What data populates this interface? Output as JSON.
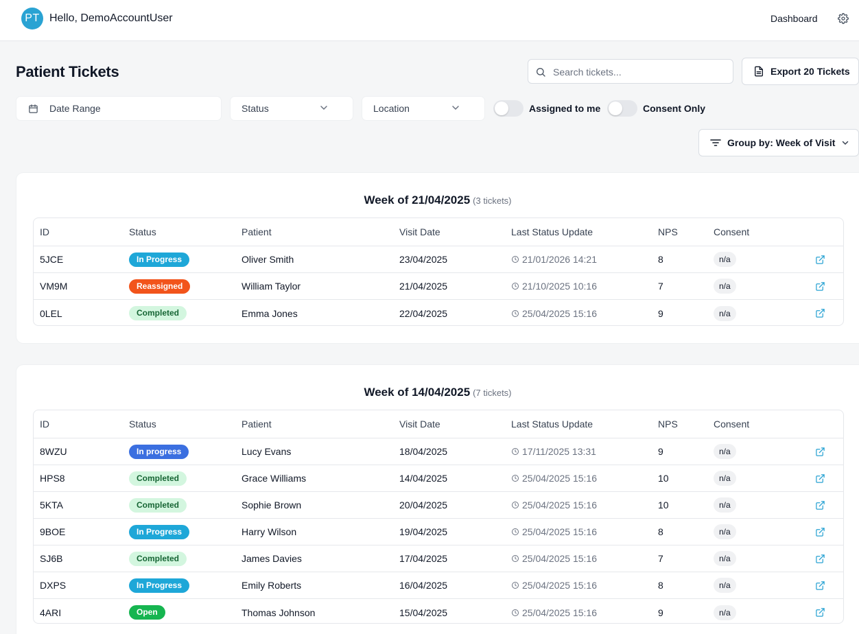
{
  "header": {
    "avatar_initials": "PT",
    "greeting": "Hello, DemoAccountUser",
    "nav_dashboard": "Dashboard"
  },
  "page": {
    "title": "Patient Tickets"
  },
  "search": {
    "placeholder": "Search tickets...",
    "value": ""
  },
  "export_button": "Export 20 Tickets",
  "filters": {
    "date_range": "Date Range",
    "status": "Status",
    "location": "Location",
    "assigned_to_me": "Assigned to me",
    "assigned_to_me_on": false,
    "consent_only": "Consent Only",
    "consent_only_on": false
  },
  "group_by": "Group by: Week of Visit",
  "columns": [
    "ID",
    "Status",
    "Patient",
    "Visit Date",
    "Last Status Update",
    "NPS",
    "Consent"
  ],
  "status_colors": {
    "In Progress": {
      "bg": "#1ea7d8",
      "fg": "#ffffff"
    },
    "In progress": {
      "bg": "#3b6fe0",
      "fg": "#ffffff"
    },
    "Reassigned": {
      "bg": "#f2541b",
      "fg": "#ffffff"
    },
    "Completed": {
      "bg": "#d3f6df",
      "fg": "#166534"
    },
    "Open": {
      "bg": "#16b550",
      "fg": "#ffffff"
    }
  },
  "groups": [
    {
      "week": "Week of 21/04/2025",
      "count": "(3 tickets)",
      "rows": [
        {
          "id": "5JCE",
          "status": "In Progress",
          "patient": "Oliver Smith",
          "visit_date": "23/04/2025",
          "last_update": "21/01/2026 14:21",
          "nps": "8",
          "consent": "n/a"
        },
        {
          "id": "VM9M",
          "status": "Reassigned",
          "patient": "William Taylor",
          "visit_date": "21/04/2025",
          "last_update": "21/10/2025 10:16",
          "nps": "7",
          "consent": "n/a"
        },
        {
          "id": "0LEL",
          "status": "Completed",
          "patient": "Emma Jones",
          "visit_date": "22/04/2025",
          "last_update": "25/04/2025 15:16",
          "nps": "9",
          "consent": "n/a"
        }
      ]
    },
    {
      "week": "Week of 14/04/2025",
      "count": "(7 tickets)",
      "rows": [
        {
          "id": "8WZU",
          "status": "In progress",
          "patient": "Lucy Evans",
          "visit_date": "18/04/2025",
          "last_update": "17/11/2025 13:31",
          "nps": "9",
          "consent": "n/a"
        },
        {
          "id": "HPS8",
          "status": "Completed",
          "patient": "Grace Williams",
          "visit_date": "14/04/2025",
          "last_update": "25/04/2025 15:16",
          "nps": "10",
          "consent": "n/a"
        },
        {
          "id": "5KTA",
          "status": "Completed",
          "patient": "Sophie Brown",
          "visit_date": "20/04/2025",
          "last_update": "25/04/2025 15:16",
          "nps": "10",
          "consent": "n/a"
        },
        {
          "id": "9BOE",
          "status": "In Progress",
          "patient": "Harry Wilson",
          "visit_date": "19/04/2025",
          "last_update": "25/04/2025 15:16",
          "nps": "8",
          "consent": "n/a"
        },
        {
          "id": "SJ6B",
          "status": "Completed",
          "patient": "James Davies",
          "visit_date": "17/04/2025",
          "last_update": "25/04/2025 15:16",
          "nps": "7",
          "consent": "n/a"
        },
        {
          "id": "DXPS",
          "status": "In Progress",
          "patient": "Emily Roberts",
          "visit_date": "16/04/2025",
          "last_update": "25/04/2025 15:16",
          "nps": "8",
          "consent": "n/a"
        },
        {
          "id": "4ARI",
          "status": "Open",
          "patient": "Thomas Johnson",
          "visit_date": "15/04/2025",
          "last_update": "25/04/2025 15:16",
          "nps": "9",
          "consent": "n/a"
        }
      ]
    }
  ]
}
